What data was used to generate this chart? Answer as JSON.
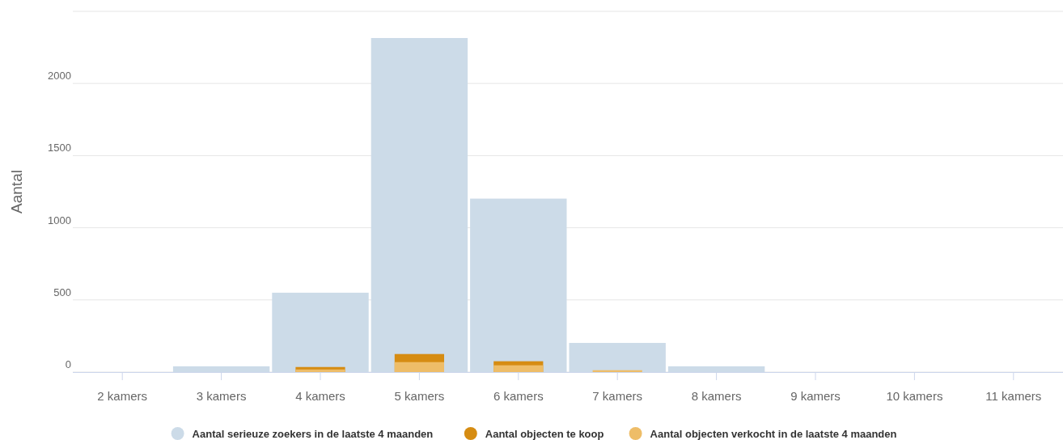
{
  "chart_data": {
    "type": "bar",
    "ylabel": "Aantal",
    "categories": [
      "2 kamers",
      "3 kamers",
      "4 kamers",
      "5 kamers",
      "6 kamers",
      "7 kamers",
      "8 kamers",
      "9 kamers",
      "10 kamers",
      "11 kamers"
    ],
    "series": [
      {
        "name": "Aantal serieuze zoekers in de laatste 4 maanden",
        "color": "#ccdbe8",
        "values": [
          0,
          40,
          550,
          2315,
          1202,
          202,
          40,
          0,
          0,
          0
        ]
      },
      {
        "name": "Aantal objecten te koop",
        "color": "#d68c12",
        "values": [
          0,
          0,
          35,
          125,
          75,
          0,
          0,
          0,
          0,
          0
        ]
      },
      {
        "name": "Aantal objecten verkocht in de laatste 4 maanden",
        "color": "#eebd68",
        "values": [
          0,
          0,
          18,
          69,
          47,
          13,
          0,
          0,
          0,
          0
        ]
      }
    ],
    "ylim": [
      0,
      2500
    ],
    "yticks": [
      0,
      500,
      1000,
      1500,
      2000,
      {
        "value": 2500,
        "label": null
      }
    ],
    "grid": "y",
    "legend": "bottom"
  }
}
